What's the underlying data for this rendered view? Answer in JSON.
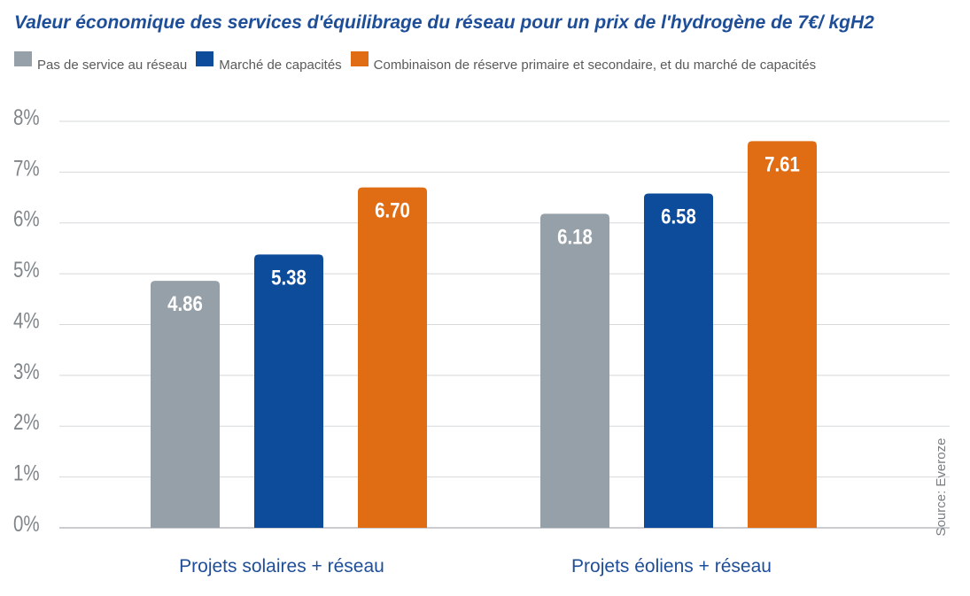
{
  "chart_data": {
    "type": "bar",
    "title": "Valeur économique des services d'équilibrage du réseau pour un prix de l'hydrogène de 7€/ kgH2",
    "categories": [
      "Projets solaires + réseau",
      "Projets éoliens + réseau"
    ],
    "series": [
      {
        "name": "Pas de service au réseau",
        "color": "#96a0a8",
        "values": [
          4.86,
          6.18
        ],
        "labels": [
          "4.86",
          "6.18"
        ]
      },
      {
        "name": "Marché de capacités",
        "color": "#0c4c9a",
        "values": [
          5.38,
          6.58
        ],
        "labels": [
          "5.38",
          "6.58"
        ]
      },
      {
        "name": "Combinaison de réserve primaire et secondaire, et du marché de capacités",
        "color": "#e06c14",
        "values": [
          6.7,
          7.61
        ],
        "labels": [
          "6.70",
          "7.61"
        ]
      }
    ],
    "y_ticks": [
      "0%",
      "1%",
      "2%",
      "3%",
      "4%",
      "5%",
      "6%",
      "7%",
      "8%"
    ],
    "ylim": [
      0,
      8
    ],
    "ylabel": "",
    "xlabel": "",
    "grid": true,
    "legend_position": "top",
    "source": "Source: Everoze"
  }
}
